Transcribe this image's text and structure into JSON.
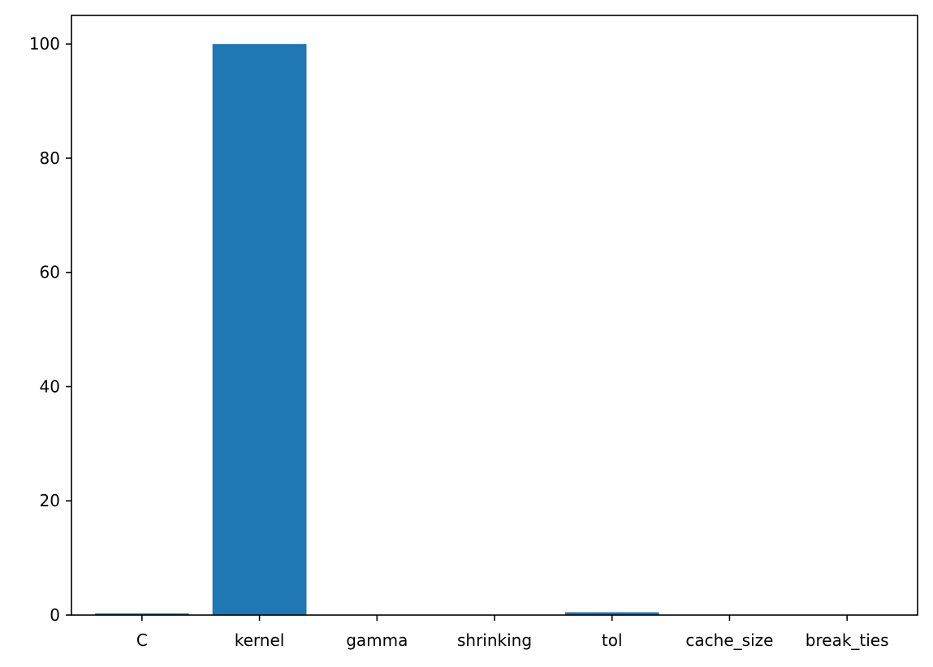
{
  "chart_data": {
    "type": "bar",
    "title": "",
    "xlabel": "",
    "ylabel": "",
    "categories": [
      "C",
      "kernel",
      "gamma",
      "shrinking",
      "tol",
      "cache_size",
      "break_ties"
    ],
    "values": [
      0.3,
      100,
      0,
      0,
      0.5,
      0,
      0
    ],
    "ylim": [
      0,
      105
    ],
    "yticks": [
      0,
      20,
      40,
      60,
      80,
      100
    ],
    "grid": false,
    "legend": "none",
    "bar_color": "#1f77b4"
  }
}
